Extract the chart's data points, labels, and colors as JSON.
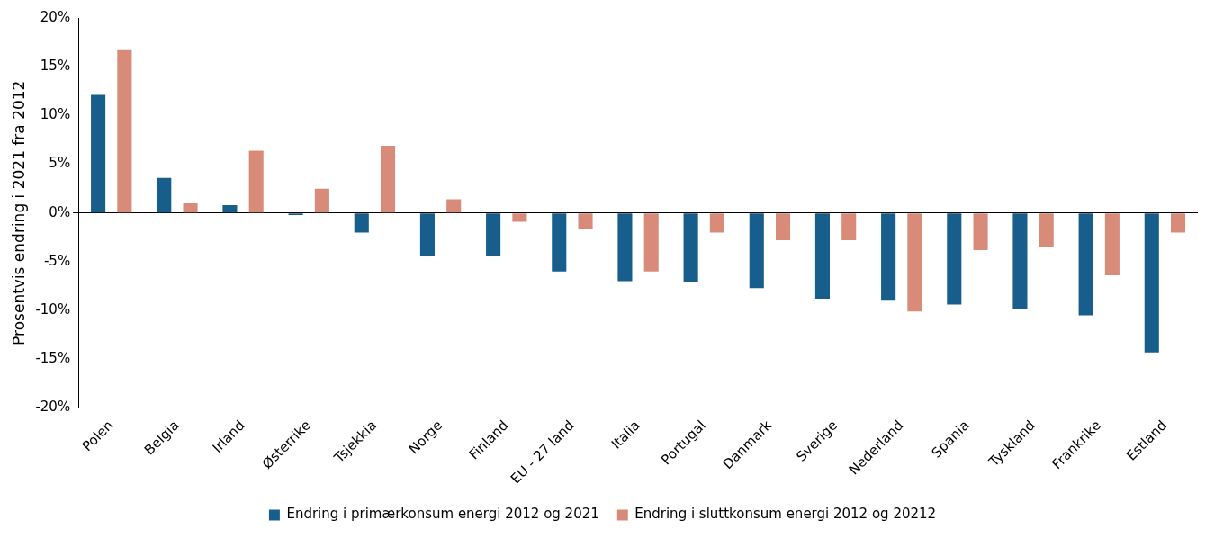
{
  "chart_data": {
    "type": "bar",
    "ylabel": "Prosentvis endring i 2021 fra 2012",
    "categories": [
      "Polen",
      "Belgia",
      "Irland",
      "Østerrike",
      "Tsjekkia",
      "Norge",
      "Finland",
      "EU - 27 land",
      "Italia",
      "Portugal",
      "Danmark",
      "Sverige",
      "Nederland",
      "Spania",
      "Tyskland",
      "Frankrike",
      "Estland"
    ],
    "series": [
      {
        "name": "Endring i primærkonsum energi 2012 og 2021",
        "color": "#175e8c",
        "values": [
          12.1,
          3.6,
          0.8,
          -0.2,
          -2.0,
          -4.4,
          -4.4,
          -6.0,
          -7.0,
          -7.1,
          -7.7,
          -8.8,
          -9.0,
          -9.4,
          -9.9,
          -10.5,
          -14.3
        ]
      },
      {
        "name": "Endring i sluttkonsum energi 2012 og 20212",
        "color": "#d98b7a",
        "values": [
          16.7,
          1.0,
          6.4,
          2.5,
          6.9,
          1.4,
          -0.9,
          -1.6,
          -6.0,
          -2.0,
          -2.8,
          -2.8,
          -10.1,
          -3.8,
          -3.5,
          -6.4,
          -2.0
        ]
      }
    ],
    "ylim": [
      -20,
      20
    ],
    "yticks": [
      {
        "value": -20,
        "label": "-20%"
      },
      {
        "value": -15,
        "label": "-15%"
      },
      {
        "value": -10,
        "label": "-10%"
      },
      {
        "value": -5,
        "label": "-5%"
      },
      {
        "value": 0,
        "label": "0%"
      },
      {
        "value": 5,
        "label": "5%"
      },
      {
        "value": 10,
        "label": "10%"
      },
      {
        "value": 15,
        "label": "15%"
      },
      {
        "value": 20,
        "label": "20%"
      }
    ],
    "legend": "bottom"
  }
}
